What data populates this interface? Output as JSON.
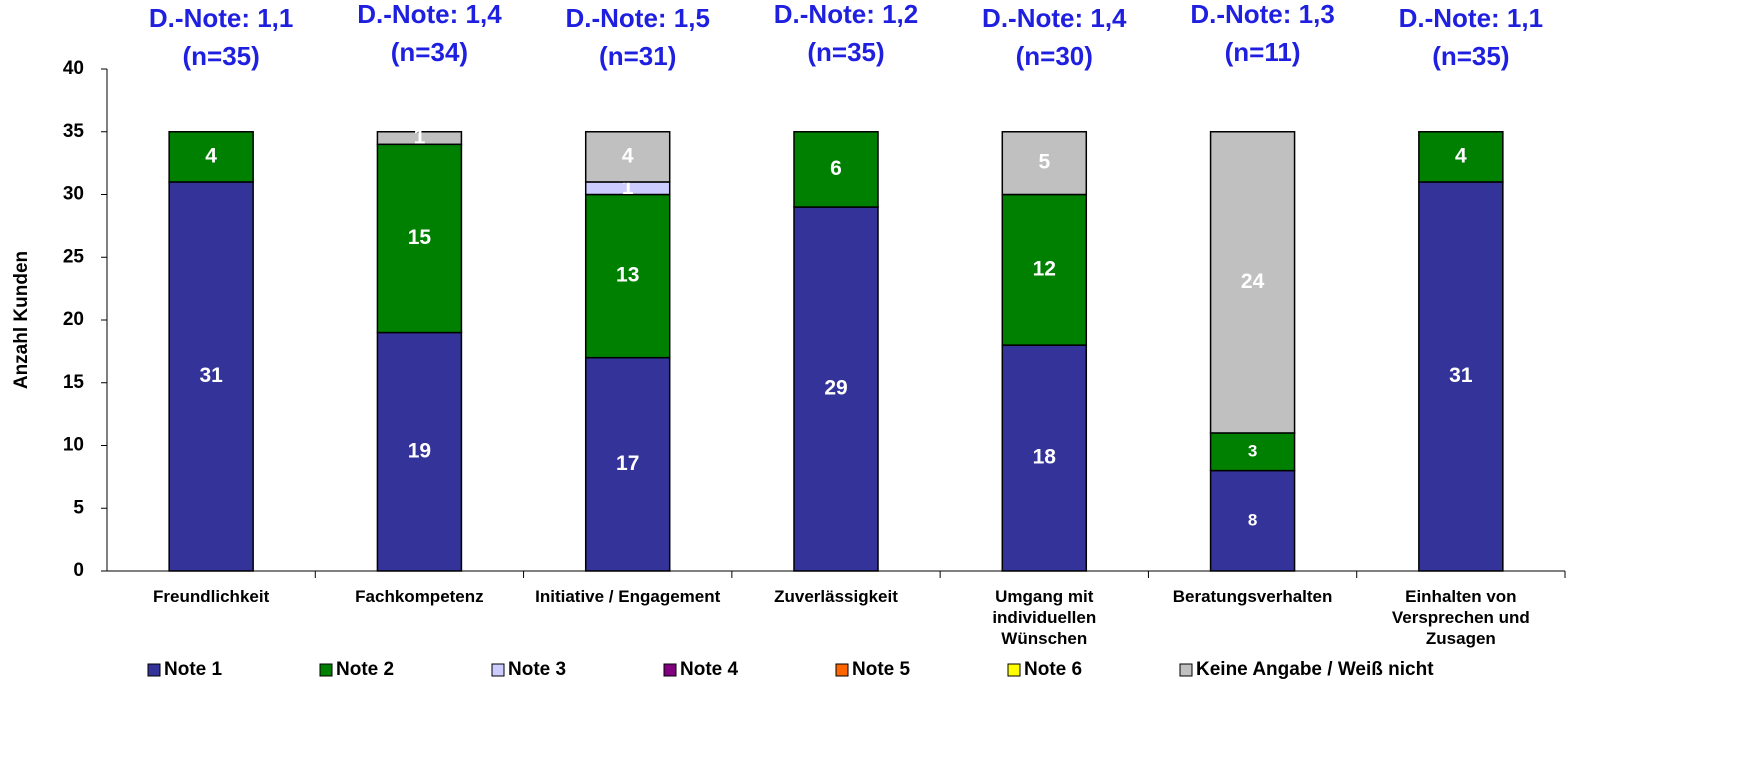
{
  "chart_data": {
    "type": "stacked_bar",
    "y_label": "Anzahl Kunden",
    "categories": [
      "Freundlichkeit",
      "Fachkompetenz",
      "Initiative / Engagement",
      "Zuverlässigkeit",
      "Umgang mit individuellen Wünschen",
      "Beratungsverhalten",
      "Einhalten von Versprechen und Zusagen"
    ],
    "annotations": [
      [
        "D.-Note: 1,1",
        "(n=35)"
      ],
      [
        "D.-Note: 1,4",
        "(n=34)"
      ],
      [
        "D.-Note: 1,5",
        "(n=31)"
      ],
      [
        "D.-Note: 1,2",
        "(n=35)"
      ],
      [
        "D.-Note: 1,4",
        "(n=30)"
      ],
      [
        "D.-Note: 1,3",
        "(n=11)"
      ],
      [
        "D.-Note: 1,1",
        "(n=35)"
      ]
    ],
    "series": [
      {
        "name": "Note 1",
        "color": "#333399",
        "values": [
          31,
          19,
          17,
          29,
          18,
          8,
          31
        ]
      },
      {
        "name": "Note 2",
        "color": "#008000",
        "values": [
          4,
          15,
          13,
          6,
          12,
          3,
          4
        ]
      },
      {
        "name": "Note 3",
        "color": "#ccccff",
        "values": [
          0,
          0,
          1,
          0,
          0,
          0,
          0
        ]
      },
      {
        "name": "Note 4",
        "color": "#800080",
        "values": [
          0,
          0,
          0,
          0,
          0,
          0,
          0
        ]
      },
      {
        "name": "Note 5",
        "color": "#ff6600",
        "values": [
          0,
          0,
          0,
          0,
          0,
          0,
          0
        ]
      },
      {
        "name": "Note 6",
        "color": "#ffff00",
        "values": [
          0,
          0,
          0,
          0,
          0,
          0,
          0
        ]
      },
      {
        "name": "Keine Angabe / Weiß nicht",
        "color": "#c0c0c0",
        "values": [
          0,
          1,
          4,
          0,
          5,
          24,
          0
        ]
      }
    ],
    "ylim": [
      0,
      40
    ],
    "yticks": [
      0,
      5,
      10,
      15,
      20,
      25,
      30,
      35,
      40
    ],
    "legend": "bottom"
  }
}
